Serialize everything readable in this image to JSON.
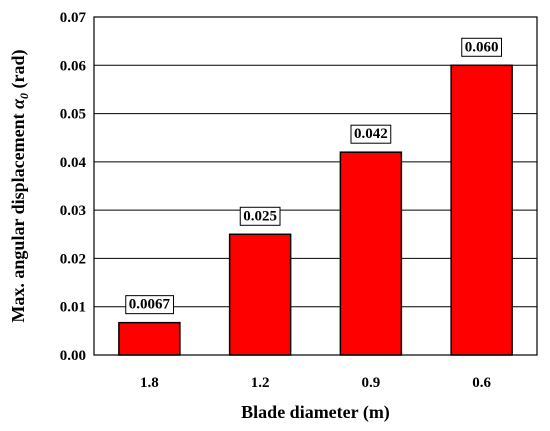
{
  "chart_data": {
    "type": "bar",
    "categories": [
      "1.8",
      "1.2",
      "0.9",
      "0.6"
    ],
    "values": [
      0.0067,
      0.025,
      0.042,
      0.06
    ],
    "data_labels": [
      "0.0067",
      "0.025",
      "0.042",
      "0.060"
    ],
    "xlabel": "Blade diameter (m)",
    "ylabel_prefix": "Max. angular displacement ",
    "ylabel_symbol": "α",
    "ylabel_subscript": "0",
    "ylabel_suffix": " (rad)",
    "ylim": [
      0,
      0.07
    ],
    "yticks": [
      "0.00",
      "0.01",
      "0.02",
      "0.03",
      "0.04",
      "0.05",
      "0.06",
      "0.07"
    ],
    "grid": true,
    "bar_color": "#ff0000",
    "edge_color": "#000000"
  }
}
